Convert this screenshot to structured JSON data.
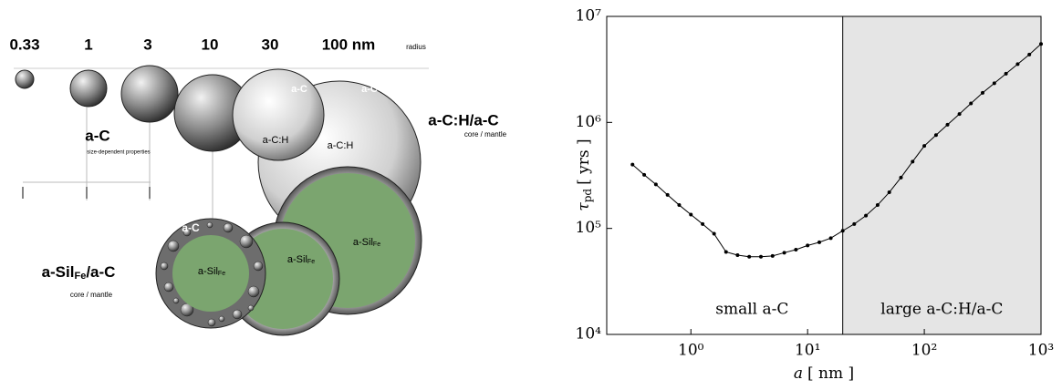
{
  "diagram": {
    "radius_labels": [
      "0.33",
      "1",
      "3",
      "10",
      "30",
      "100 nm"
    ],
    "radius_caption": "radius",
    "ac_label": "a-C",
    "ac_note": "size-dependent properties",
    "ach_label": "a-C:H/a-C",
    "ach_note": "core / mantle",
    "ach_core_labels": [
      "a-C:H",
      "a-C:H"
    ],
    "mantle_labels": [
      "a-C",
      "a-C",
      "a-C"
    ],
    "sil_labels": [
      {
        "text": "a-Sil",
        "sub": "Fe"
      },
      {
        "text": "a-Sil",
        "sub": "Fe"
      },
      {
        "text": "a-Sil",
        "sub": "Fe"
      }
    ],
    "sil_title": {
      "text": "a-Sil",
      "sub": "Fe",
      "suffix": "/a-C"
    },
    "sil_note": "core / mantle"
  },
  "chart_data": {
    "type": "line",
    "ylabel_symbol": "τ",
    "ylabel_subscript": "pd",
    "ylabel_unit": "[ yrs ]",
    "xlabel_symbol": "a",
    "xlabel_unit": "[ nm ]",
    "xscale": "log",
    "yscale": "log",
    "xlim": [
      0.19,
      1000
    ],
    "ylim": [
      10000,
      10000000
    ],
    "xticks": [
      {
        "value": 1,
        "label": "10⁰"
      },
      {
        "value": 10,
        "label": "10¹"
      },
      {
        "value": 100,
        "label": "10²"
      },
      {
        "value": 1000,
        "label": "10³"
      }
    ],
    "yticks": [
      {
        "value": 10000,
        "label": "10⁴"
      },
      {
        "value": 100000,
        "label": "10⁵"
      },
      {
        "value": 1000000,
        "label": "10⁶"
      },
      {
        "value": 10000000,
        "label": "10⁷"
      }
    ],
    "color": "#000000",
    "shaded_region": [
      20,
      1000
    ],
    "shade_color": "#e5e5e5",
    "annotations": [
      "small a-C",
      "large a-C:H/a-C"
    ],
    "x": [
      0.316,
      0.398,
      0.501,
      0.631,
      0.794,
      1,
      1.26,
      1.58,
      2,
      2.51,
      3.16,
      3.98,
      5.01,
      6.31,
      7.94,
      10,
      12.6,
      15.8,
      20,
      25.1,
      31.6,
      39.8,
      50.1,
      63.1,
      79.4,
      100,
      126,
      158,
      200,
      251,
      316,
      398,
      501,
      631,
      794,
      1000
    ],
    "values": [
      400000,
      320000,
      260000,
      207000,
      166000,
      135000,
      110000,
      89000,
      60000,
      56000,
      54000,
      54000,
      55000,
      59000,
      63000,
      69000,
      74000,
      81000,
      95000,
      110000,
      132000,
      166000,
      219000,
      302000,
      427000,
      600000,
      760000,
      950000,
      1200000,
      1510000,
      1900000,
      2340000,
      2880000,
      3550000,
      4370000,
      5500000
    ]
  }
}
